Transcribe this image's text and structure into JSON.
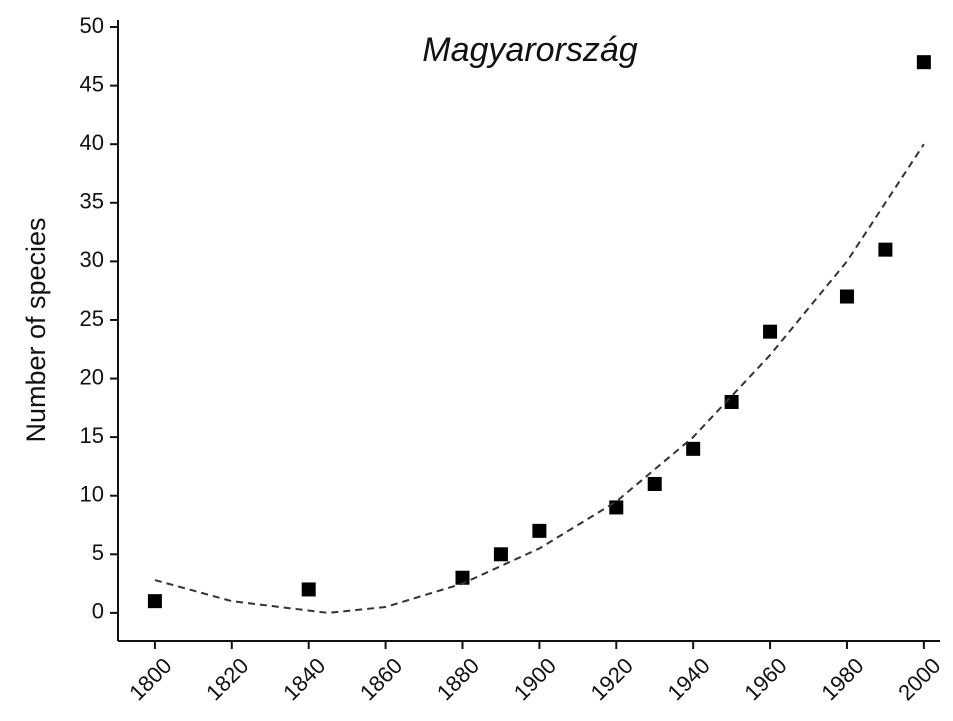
{
  "chart_data": {
    "type": "scatter",
    "title": "Magyarország",
    "ylabel": "Number of species",
    "xlim": [
      1790.4,
      2004.2
    ],
    "ylim": [
      -2.4,
      50.6
    ],
    "xticks": [
      1800,
      1820,
      1840,
      1860,
      1880,
      1900,
      1920,
      1940,
      1960,
      1980,
      2000
    ],
    "yticks": [
      0,
      5,
      10,
      15,
      20,
      25,
      30,
      35,
      40,
      45,
      50
    ],
    "series": [
      {
        "color": "#000000",
        "marker": "square",
        "x": [
          1800,
          1840,
          1880,
          1890,
          1900,
          1920,
          1930,
          1940,
          1950,
          1960,
          1980,
          1990,
          2000
        ],
        "values": [
          1,
          2,
          3,
          5,
          7,
          9,
          11,
          14,
          18,
          24,
          27,
          31,
          47
        ]
      },
      {
        "color": "#333333",
        "line": "dashed",
        "x": [
          1800,
          1820,
          1845,
          1860,
          1880,
          1900,
          1920,
          1940,
          1960,
          1980,
          2000
        ],
        "values": [
          2.8,
          1,
          0,
          0.5,
          2.5,
          5.5,
          9.5,
          15,
          22,
          30,
          40
        ]
      }
    ]
  }
}
